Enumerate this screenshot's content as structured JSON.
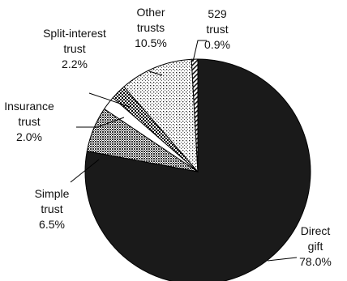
{
  "chart_data": {
    "type": "pie",
    "title": "",
    "unit": "%",
    "slices": [
      {
        "name": "Direct gift",
        "value": 78.0,
        "label_lines": [
          "Direct",
          "gift",
          "78.0%"
        ],
        "fill": "solid-black"
      },
      {
        "name": "Simple trust",
        "value": 6.5,
        "label_lines": [
          "Simple",
          "trust",
          "6.5%"
        ],
        "fill": "crosshatch"
      },
      {
        "name": "Insurance trust",
        "value": 2.0,
        "label_lines": [
          "Insurance",
          "trust",
          "2.0%"
        ],
        "fill": "white"
      },
      {
        "name": "Split-interest trust",
        "value": 2.2,
        "label_lines": [
          "Split-interest",
          "trust",
          "2.2%"
        ],
        "fill": "checkerboard"
      },
      {
        "name": "Other trusts",
        "value": 10.5,
        "label_lines": [
          "Other",
          "trusts",
          "10.5%"
        ],
        "fill": "dotted"
      },
      {
        "name": "529 trust",
        "value": 0.9,
        "label_lines": [
          "529",
          "trust",
          "0.9%"
        ],
        "fill": "diagonal-stripes"
      }
    ],
    "start_direction": "12 o'clock",
    "direction": "clockwise",
    "legend": "none",
    "colors": {
      "primary": "#1a1a1a",
      "pattern_bg": "#ffffff",
      "stroke": "#000000"
    }
  }
}
